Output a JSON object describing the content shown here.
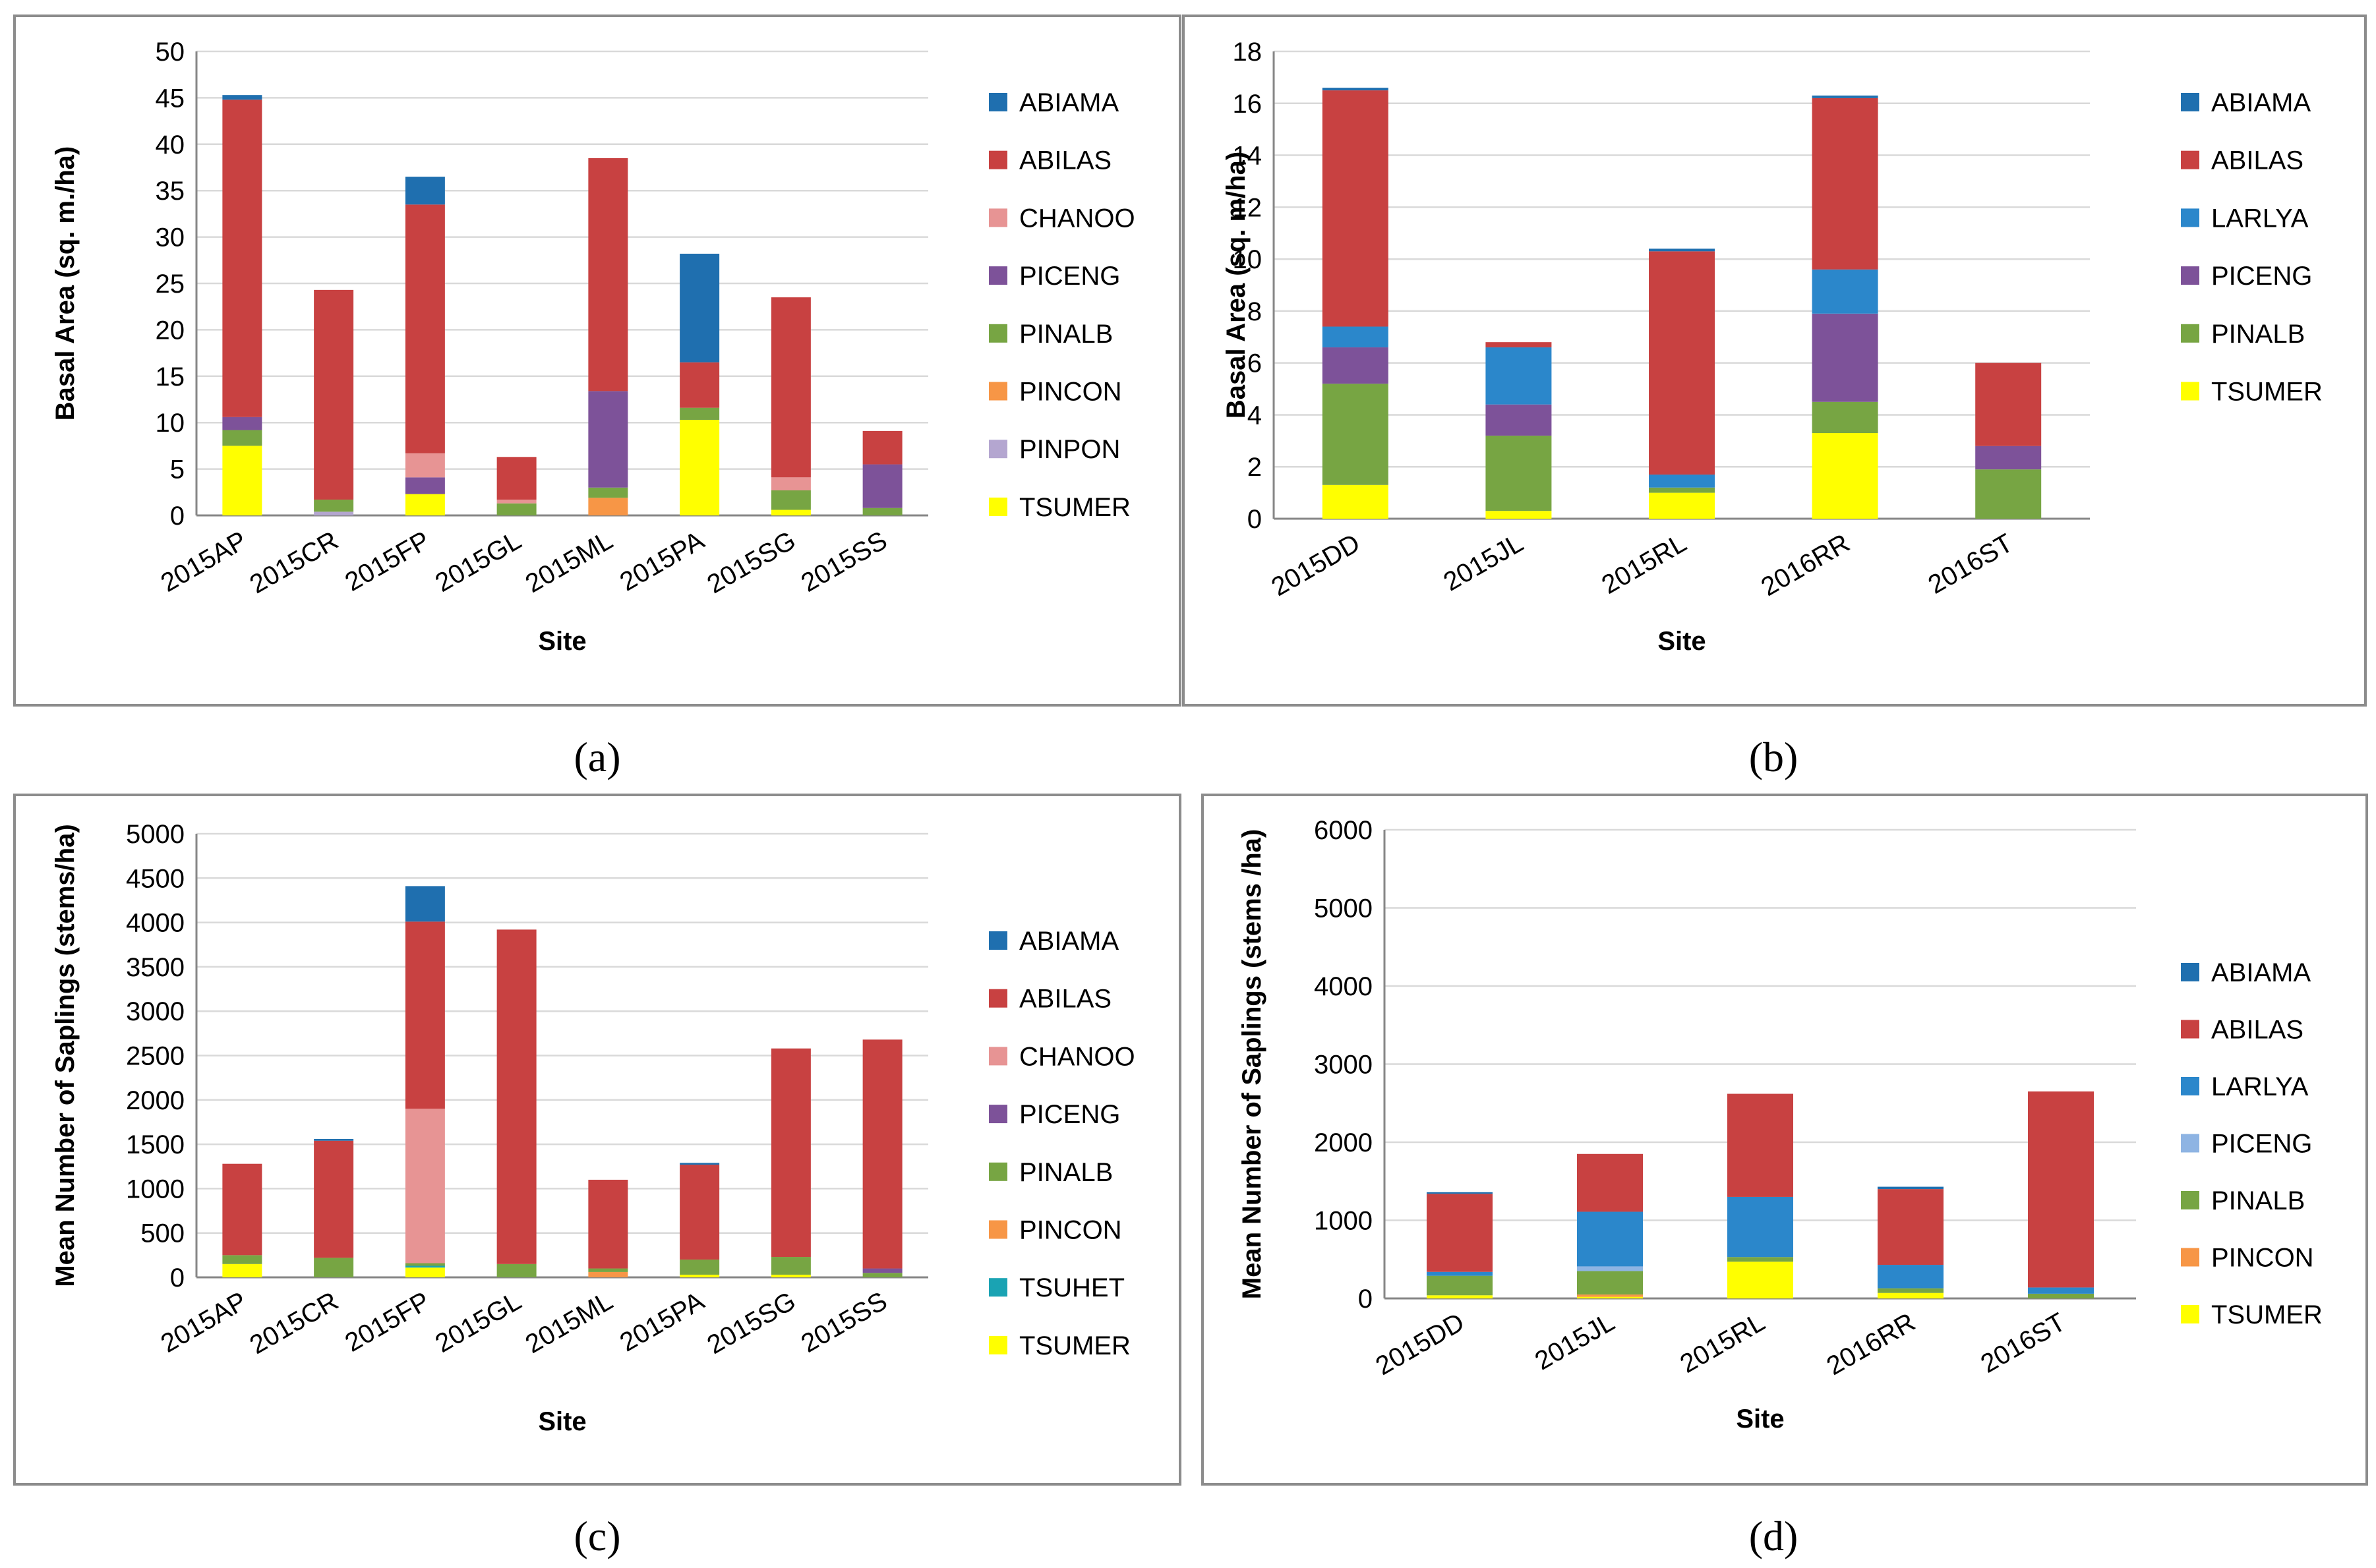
{
  "colors": {
    "ABIAMA": "#1f6faf",
    "ABILAS": "#c84141",
    "CHANOO": "#e79494",
    "PICENG": "#7d5299",
    "PINALB": "#77a543",
    "PINCON": "#f79646",
    "PINPON": "#b4a6d0",
    "TSUMER": "#ffff00",
    "TSUHET": "#1aa3b3",
    "LARLYA": "#2b87cb",
    "PICENG_light": "#8eb4e3"
  },
  "chart_data": [
    {
      "panel": "(a)",
      "type": "bar",
      "stacked": true,
      "ylabel": "Basal Area (sq. m./ha)",
      "xlabel": "Site",
      "ylim": [
        0,
        50
      ],
      "yticks": [
        "0",
        "5",
        "10",
        "15",
        "20",
        "25",
        "30",
        "35",
        "40",
        "45",
        "50"
      ],
      "categories": [
        "2015AP",
        "2015CR",
        "2015FP",
        "2015GL",
        "2015ML",
        "2015PA",
        "2015SG",
        "2015SS"
      ],
      "legend": [
        "ABIAMA",
        "ABILAS",
        "CHANOO",
        "PICENG",
        "PINALB",
        "PINCON",
        "PINPON",
        "TSUMER"
      ],
      "series": [
        {
          "name": "TSUMER",
          "color_key": "TSUMER",
          "values": [
            7.5,
            0,
            2.3,
            0,
            0,
            10.3,
            0.6,
            0
          ]
        },
        {
          "name": "PINPON",
          "color_key": "PINPON",
          "values": [
            0,
            0.4,
            0,
            0,
            0,
            0,
            0,
            0
          ]
        },
        {
          "name": "PINCON",
          "color_key": "PINCON",
          "values": [
            0,
            0,
            0,
            0,
            1.9,
            0,
            0,
            0
          ]
        },
        {
          "name": "PINALB",
          "color_key": "PINALB",
          "values": [
            1.7,
            1.3,
            0,
            1.3,
            1.1,
            1.3,
            2.1,
            0.8
          ]
        },
        {
          "name": "PICENG",
          "color_key": "PICENG",
          "values": [
            1.4,
            0,
            1.8,
            0,
            10.4,
            0,
            0,
            4.7
          ]
        },
        {
          "name": "CHANOO",
          "color_key": "CHANOO",
          "values": [
            0,
            0,
            2.6,
            0.4,
            0,
            0,
            1.4,
            0
          ]
        },
        {
          "name": "ABILAS",
          "color_key": "ABILAS",
          "values": [
            34.2,
            22.6,
            26.8,
            4.6,
            25.1,
            4.9,
            19.4,
            3.6
          ]
        },
        {
          "name": "ABIAMA",
          "color_key": "ABIAMA",
          "values": [
            0.5,
            0,
            3.0,
            0,
            0,
            11.7,
            0,
            0
          ]
        }
      ]
    },
    {
      "panel": "(b)",
      "type": "bar",
      "stacked": true,
      "ylabel": "Basal Area (sq. m/ha)",
      "xlabel": "Site",
      "ylim": [
        0,
        18
      ],
      "yticks": [
        "0",
        "2",
        "4",
        "6",
        "8",
        "10",
        "12",
        "14",
        "16",
        "18"
      ],
      "categories": [
        "2015DD",
        "2015JL",
        "2015RL",
        "2016RR",
        "2016ST"
      ],
      "legend": [
        "ABIAMA",
        "ABILAS",
        "LARLYA",
        "PICENG",
        "PINALB",
        "TSUMER"
      ],
      "series": [
        {
          "name": "TSUMER",
          "color_key": "TSUMER",
          "values": [
            1.3,
            0.3,
            1.0,
            3.3,
            0
          ]
        },
        {
          "name": "PINALB",
          "color_key": "PINALB",
          "values": [
            3.9,
            2.9,
            0.2,
            1.2,
            1.9
          ]
        },
        {
          "name": "PICENG",
          "color_key": "PICENG",
          "values": [
            1.4,
            1.2,
            0,
            3.4,
            0.9
          ]
        },
        {
          "name": "LARLYA",
          "color_key": "LARLYA",
          "values": [
            0.8,
            2.2,
            0.5,
            1.7,
            0
          ]
        },
        {
          "name": "ABILAS",
          "color_key": "ABILAS",
          "values": [
            9.1,
            0.2,
            8.6,
            6.6,
            3.2
          ]
        },
        {
          "name": "ABIAMA",
          "color_key": "ABIAMA",
          "values": [
            0.1,
            0,
            0.1,
            0.1,
            0
          ]
        }
      ]
    },
    {
      "panel": "(c)",
      "type": "bar",
      "stacked": true,
      "ylabel": "Mean Number of Saplings (stems/ha)",
      "xlabel": "Site",
      "ylim": [
        0,
        5000
      ],
      "yticks": [
        "0",
        "500",
        "1000",
        "1500",
        "2000",
        "2500",
        "3000",
        "3500",
        "4000",
        "4500",
        "5000"
      ],
      "categories": [
        "2015AP",
        "2015CR",
        "2015FP",
        "2015GL",
        "2015ML",
        "2015PA",
        "2015SG",
        "2015SS"
      ],
      "legend": [
        "ABIAMA",
        "ABILAS",
        "CHANOO",
        "PICENG",
        "PINALB",
        "PINCON",
        "TSUHET",
        "TSUMER"
      ],
      "series": [
        {
          "name": "TSUMER",
          "color_key": "TSUMER",
          "values": [
            150,
            0,
            110,
            0,
            0,
            30,
            30,
            0
          ]
        },
        {
          "name": "TSUHET",
          "color_key": "TSUHET",
          "values": [
            0,
            0,
            20,
            0,
            0,
            0,
            0,
            0
          ]
        },
        {
          "name": "PINCON",
          "color_key": "PINCON",
          "values": [
            0,
            0,
            0,
            0,
            60,
            0,
            0,
            0
          ]
        },
        {
          "name": "PINALB",
          "color_key": "PINALB",
          "values": [
            100,
            220,
            30,
            150,
            40,
            170,
            200,
            50
          ]
        },
        {
          "name": "PICENG",
          "color_key": "PICENG",
          "values": [
            0,
            0,
            0,
            0,
            0,
            0,
            0,
            50
          ]
        },
        {
          "name": "CHANOO",
          "color_key": "CHANOO",
          "values": [
            0,
            0,
            1740,
            0,
            0,
            0,
            0,
            0
          ]
        },
        {
          "name": "ABILAS",
          "color_key": "ABILAS",
          "values": [
            1030,
            1320,
            2110,
            3770,
            1000,
            1070,
            2350,
            2580
          ]
        },
        {
          "name": "ABIAMA",
          "color_key": "ABIAMA",
          "values": [
            0,
            20,
            400,
            0,
            0,
            20,
            0,
            0
          ]
        }
      ]
    },
    {
      "panel": "(d)",
      "type": "bar",
      "stacked": true,
      "ylabel": "Mean Number of Saplings  (stems /ha)",
      "xlabel": "Site",
      "ylim": [
        0,
        6000
      ],
      "yticks": [
        "0",
        "1000",
        "2000",
        "3000",
        "4000",
        "5000",
        "6000"
      ],
      "categories": [
        "2015DD",
        "2015JL",
        "2015RL",
        "2016RR",
        "2016ST"
      ],
      "legend": [
        "ABIAMA",
        "ABILAS",
        "LARLYA",
        "PICENG",
        "PINALB",
        "PINCON",
        "TSUMER"
      ],
      "series": [
        {
          "name": "TSUMER",
          "color_key": "TSUMER",
          "values": [
            40,
            20,
            470,
            70,
            0
          ]
        },
        {
          "name": "PINCON",
          "color_key": "PINCON",
          "values": [
            0,
            30,
            0,
            0,
            0
          ]
        },
        {
          "name": "PINALB",
          "color_key": "PINALB",
          "values": [
            250,
            300,
            60,
            60,
            60
          ]
        },
        {
          "name": "PICENG",
          "color_key": "PICENG_light",
          "values": [
            0,
            60,
            0,
            0,
            0
          ]
        },
        {
          "name": "LARLYA",
          "color_key": "LARLYA",
          "values": [
            50,
            700,
            770,
            300,
            80
          ]
        },
        {
          "name": "ABILAS",
          "color_key": "ABILAS",
          "values": [
            1000,
            740,
            1320,
            970,
            2510
          ]
        },
        {
          "name": "ABIAMA",
          "color_key": "ABIAMA",
          "values": [
            20,
            0,
            0,
            30,
            0
          ]
        }
      ]
    }
  ]
}
